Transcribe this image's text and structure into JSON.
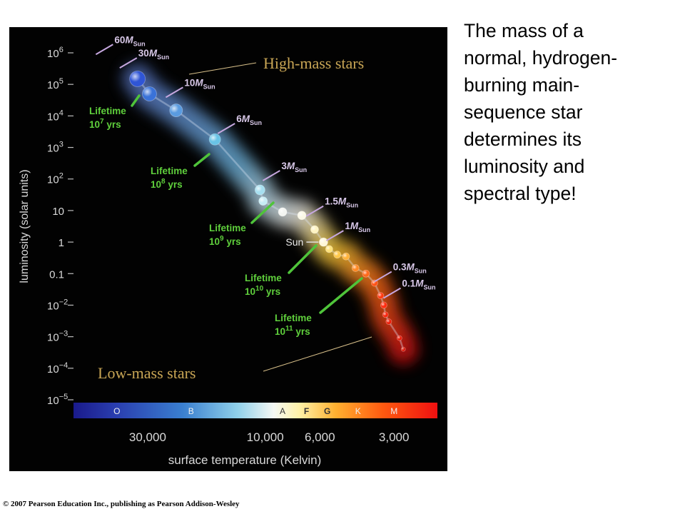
{
  "caption": {
    "lines": [
      "The mass of a",
      "normal, hydrogen-",
      "burning main-",
      "sequence star",
      "determines its",
      "luminosity and",
      "spectral type!"
    ]
  },
  "copyright": "© 2007 Pearson Education Inc., publishing as Pearson Addison-Wesley",
  "chart_data": {
    "type": "scatter",
    "xlabel": "surface temperature (Kelvin)",
    "ylabel": "luminosity (solar units)",
    "x_scale": "log-reversed",
    "y_scale": "log",
    "xlim": [
      60000,
      2000
    ],
    "ylim": [
      1e-05,
      1000000
    ],
    "x_ticks": [
      {
        "label": "30,000",
        "value": 30000
      },
      {
        "label": "10,000",
        "value": 10000
      },
      {
        "label": "6,000",
        "value": 6000
      },
      {
        "label": "3,000",
        "value": 3000
      }
    ],
    "y_ticks": [
      {
        "base": "10",
        "exp": "6",
        "value": 1000000
      },
      {
        "base": "10",
        "exp": "5",
        "value": 100000
      },
      {
        "base": "10",
        "exp": "4",
        "value": 10000
      },
      {
        "base": "10",
        "exp": "3",
        "value": 1000
      },
      {
        "base": "10",
        "exp": "2",
        "value": 100
      },
      {
        "base": "10",
        "exp": "",
        "value": 10
      },
      {
        "base": "1",
        "exp": "",
        "value": 1
      },
      {
        "base": "0.1",
        "exp": "",
        "value": 0.1
      },
      {
        "base": "10",
        "exp": "−2",
        "value": 0.01
      },
      {
        "base": "10",
        "exp": "−3",
        "value": 0.001
      },
      {
        "base": "10",
        "exp": "−4",
        "value": 0.0001
      },
      {
        "base": "10",
        "exp": "−5",
        "value": 1e-05
      }
    ],
    "spectral_classes": [
      {
        "label": "O",
        "temp": 40000
      },
      {
        "label": "B",
        "temp": 20000
      },
      {
        "label": "A",
        "temp": 8500
      },
      {
        "label": "F",
        "temp": 6800
      },
      {
        "label": "G",
        "temp": 5600
      },
      {
        "label": "K",
        "temp": 4200
      },
      {
        "label": "M",
        "temp": 3000
      }
    ],
    "stars": [
      {
        "temp": 33000,
        "lum": 150000,
        "r": 11,
        "color": "#2f55d6"
      },
      {
        "temp": 29500,
        "lum": 50000,
        "r": 10,
        "color": "#3a72d8"
      },
      {
        "temp": 23000,
        "lum": 15000,
        "r": 9,
        "color": "#5a9be0"
      },
      {
        "temp": 16000,
        "lum": 1800,
        "r": 8,
        "color": "#69c3e6"
      },
      {
        "temp": 10500,
        "lum": 45,
        "r": 7,
        "color": "#a6dff0"
      },
      {
        "temp": 10200,
        "lum": 20,
        "r": 6,
        "color": "#c7ecf5"
      },
      {
        "temp": 8500,
        "lum": 9,
        "r": 6,
        "color": "#f3f5f1"
      },
      {
        "temp": 7100,
        "lum": 7,
        "r": 6,
        "color": "#fbf8e6"
      },
      {
        "temp": 6300,
        "lum": 2.5,
        "r": 5.5,
        "color": "#fff4c2"
      },
      {
        "temp": 5800,
        "lum": 1,
        "r": 6,
        "color": "#fff7d8"
      },
      {
        "temp": 5500,
        "lum": 0.6,
        "r": 5,
        "color": "#ffe27a"
      },
      {
        "temp": 5100,
        "lum": 0.4,
        "r": 5,
        "color": "#ffc84a"
      },
      {
        "temp": 4700,
        "lum": 0.35,
        "r": 5,
        "color": "#ffb23a"
      },
      {
        "temp": 4300,
        "lum": 0.15,
        "r": 5,
        "color": "#ff8a26"
      },
      {
        "temp": 3900,
        "lum": 0.1,
        "r": 5,
        "color": "#ff6a1c"
      },
      {
        "temp": 3600,
        "lum": 0.05,
        "r": 4.5,
        "color": "#ff5316"
      },
      {
        "temp": 3400,
        "lum": 0.02,
        "r": 4.5,
        "color": "#ff3a12"
      },
      {
        "temp": 3300,
        "lum": 0.01,
        "r": 4.5,
        "color": "#ff2d10"
      },
      {
        "temp": 3250,
        "lum": 0.005,
        "r": 4,
        "color": "#f7260e"
      },
      {
        "temp": 3150,
        "lum": 0.003,
        "r": 4,
        "color": "#ee200c"
      },
      {
        "temp": 2850,
        "lum": 0.0009,
        "r": 3.5,
        "color": "#e81c0a"
      },
      {
        "temp": 2750,
        "lum": 0.0004,
        "r": 3,
        "color": "#d81808"
      }
    ],
    "mass_labels": [
      {
        "value": "60",
        "sub": "Sun",
        "temp": 50000,
        "lum": 800000
      },
      {
        "value": "30",
        "sub": "Sun",
        "temp": 40000,
        "lum": 300000
      },
      {
        "value": "10",
        "sub": "Sun",
        "temp": 26000,
        "lum": 35000
      },
      {
        "value": "6",
        "sub": "Sun",
        "temp": 16000,
        "lum": 2500
      },
      {
        "value": "3",
        "sub": "Sun",
        "temp": 10500,
        "lum": 80
      },
      {
        "value": "1.5",
        "sub": "Sun",
        "temp": 7000,
        "lum": 6
      },
      {
        "value": "1",
        "sub": "Sun",
        "temp": 5800,
        "lum": 1
      },
      {
        "value": "0.3",
        "sub": "Sun",
        "temp": 3700,
        "lum": 0.05
      },
      {
        "value": "0.1",
        "sub": "Sun",
        "temp": 3400,
        "lum": 0.015
      }
    ],
    "lifetimes": [
      {
        "label": "Lifetime",
        "base": "10",
        "exp": "7",
        "unit": "yrs"
      },
      {
        "label": "Lifetime",
        "base": "10",
        "exp": "8",
        "unit": "yrs"
      },
      {
        "label": "Lifetime",
        "base": "10",
        "exp": "9",
        "unit": "yrs"
      },
      {
        "label": "Lifetime",
        "base": "10",
        "exp": "10",
        "unit": "yrs"
      },
      {
        "label": "Lifetime",
        "base": "10",
        "exp": "11",
        "unit": "yrs"
      }
    ],
    "sun_label": "Sun",
    "annotations": {
      "high_mass": "High-mass stars",
      "low_mass": "Low-mass stars"
    }
  }
}
